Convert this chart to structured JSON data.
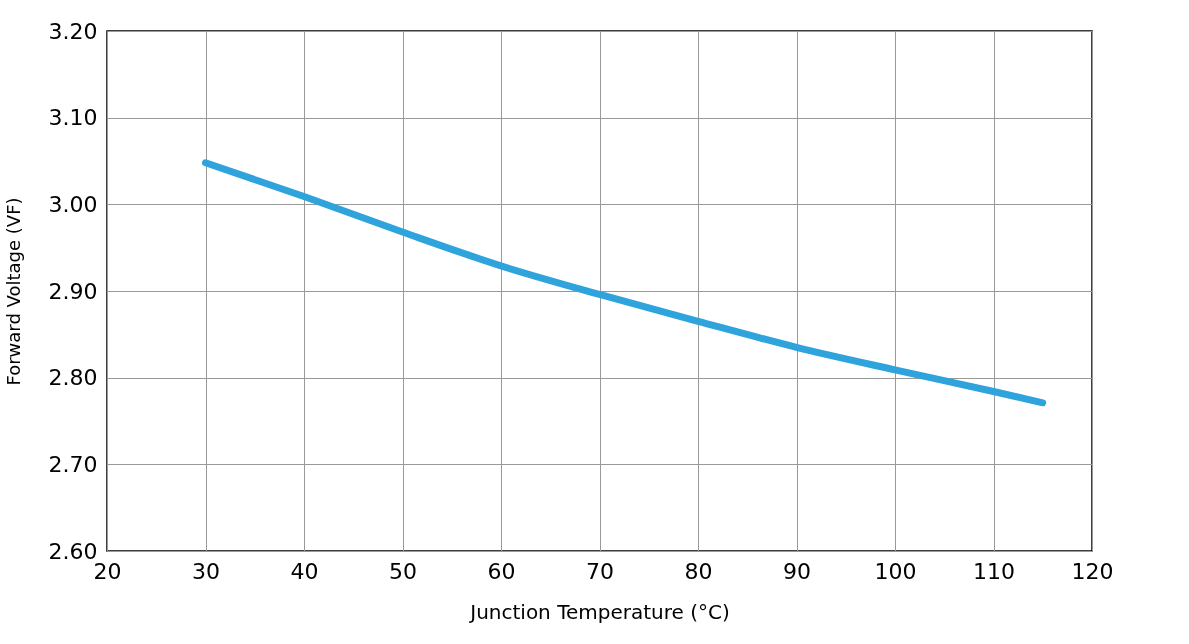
{
  "chart_data": {
    "type": "line",
    "xlabel": "Junction Temperature (°C)",
    "ylabel": "Forward Voltage (VF)",
    "xlim": [
      20,
      120
    ],
    "xticks": [
      20,
      30,
      40,
      50,
      60,
      70,
      80,
      90,
      100,
      110,
      120
    ],
    "ylim": [
      2.6,
      3.2
    ],
    "yticks": [
      {
        "value": 2.6,
        "label": "2.60"
      },
      {
        "value": 2.7,
        "label": "2.70"
      },
      {
        "value": 2.8,
        "label": "2.80"
      },
      {
        "value": 2.9,
        "label": "2.90"
      },
      {
        "value": 3.0,
        "label": "3.00"
      },
      {
        "value": 3.1,
        "label": "3.10"
      },
      {
        "value": 3.2,
        "label": "3.20"
      }
    ],
    "grid": true,
    "line_style": "solid",
    "series": [
      {
        "color": "#2ea3dc",
        "x": [
          30,
          40,
          50,
          60,
          70,
          80,
          90,
          100,
          110,
          115
        ],
        "values": [
          3.048,
          3.009,
          2.968,
          2.929,
          2.896,
          2.865,
          2.835,
          2.809,
          2.784,
          2.771
        ]
      }
    ]
  }
}
